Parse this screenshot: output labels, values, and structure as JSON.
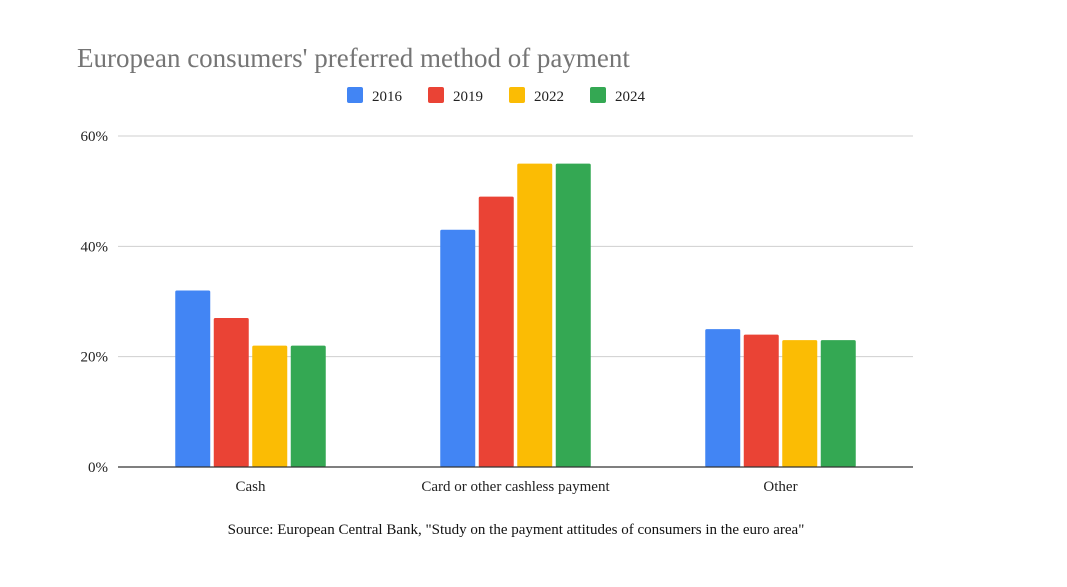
{
  "chart_data": {
    "type": "bar",
    "title": "European consumers' preferred method of payment",
    "categories": [
      "Cash",
      "Card or other cashless payment",
      "Other"
    ],
    "series": [
      {
        "name": "2016",
        "color": "#4285F4",
        "values": [
          32,
          43,
          25
        ]
      },
      {
        "name": "2019",
        "color": "#EA4335",
        "values": [
          27,
          49,
          24
        ]
      },
      {
        "name": "2022",
        "color": "#FBBC04",
        "values": [
          22,
          55,
          23
        ]
      },
      {
        "name": "2024",
        "color": "#34A853",
        "values": [
          22,
          55,
          23
        ]
      }
    ],
    "ylim": [
      0,
      60
    ],
    "yticks": [
      0,
      20,
      40,
      60
    ],
    "ytick_labels": [
      "0%",
      "20%",
      "40%",
      "60%"
    ],
    "grid": true,
    "legend_position": "top-center",
    "source": "Source: European Central Bank, \"Study on the payment attitudes of consumers in the euro area\""
  }
}
